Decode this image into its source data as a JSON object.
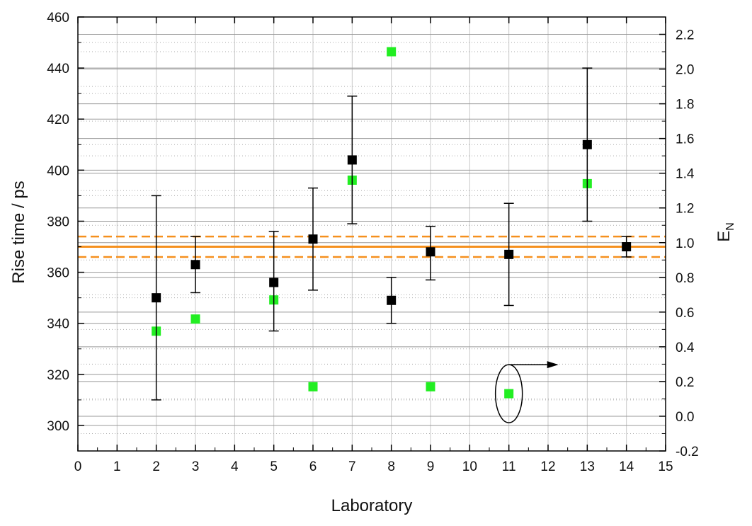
{
  "chart_data": {
    "type": "scatter",
    "title": "",
    "xlabel": "Laboratory",
    "ylabel": "Rise time / ps",
    "y2label_main": "E",
    "y2label_sub": "N",
    "xlim": [
      0,
      15
    ],
    "ylim": [
      290,
      460
    ],
    "y2lim": [
      -0.2,
      2.3
    ],
    "x_ticks": [
      "0",
      "1",
      "2",
      "3",
      "4",
      "5",
      "6",
      "7",
      "8",
      "9",
      "10",
      "11",
      "12",
      "13",
      "14",
      "15"
    ],
    "y_ticks": [
      "300",
      "320",
      "340",
      "360",
      "380",
      "400",
      "420",
      "440",
      "460"
    ],
    "y2_ticks": [
      "-0.2",
      "0.0",
      "0.2",
      "0.4",
      "0.6",
      "0.8",
      "1.0",
      "1.2",
      "1.4",
      "1.6",
      "1.8",
      "2.0",
      "2.2"
    ],
    "grid": true,
    "colors": {
      "rise_time": "#000000",
      "en": "#22ee22",
      "reference": "#f5901e",
      "grid": "#999999"
    },
    "series": [
      {
        "axis": "left",
        "points": [
          {
            "x": 2,
            "y": 350,
            "low": 310,
            "high": 390
          },
          {
            "x": 3,
            "y": 363,
            "low": 352,
            "high": 374
          },
          {
            "x": 5,
            "y": 356,
            "low": 337,
            "high": 376
          },
          {
            "x": 6,
            "y": 373,
            "low": 353,
            "high": 393
          },
          {
            "x": 7,
            "y": 404,
            "low": 379,
            "high": 429
          },
          {
            "x": 8,
            "y": 349,
            "low": 340,
            "high": 358
          },
          {
            "x": 9,
            "y": 368,
            "low": 357,
            "high": 378
          },
          {
            "x": 11,
            "y": 367,
            "low": 347,
            "high": 387
          },
          {
            "x": 13,
            "y": 410,
            "low": 380,
            "high": 440
          },
          {
            "x": 14,
            "y": 370,
            "low": 366,
            "high": 374
          }
        ]
      },
      {
        "axis": "right",
        "points": [
          {
            "x": 2,
            "y": 0.49
          },
          {
            "x": 3,
            "y": 0.56
          },
          {
            "x": 5,
            "y": 0.67
          },
          {
            "x": 6,
            "y": 0.17
          },
          {
            "x": 7,
            "y": 1.36
          },
          {
            "x": 8,
            "y": 2.1
          },
          {
            "x": 9,
            "y": 0.17
          },
          {
            "x": 11,
            "y": 0.13
          },
          {
            "x": 13,
            "y": 1.34
          }
        ]
      }
    ],
    "reference": {
      "value": 370,
      "band": [
        366,
        374
      ]
    },
    "annotation": {
      "circled_x": 11,
      "circled_y2": 0.13,
      "arrow": "points to right axis"
    }
  }
}
